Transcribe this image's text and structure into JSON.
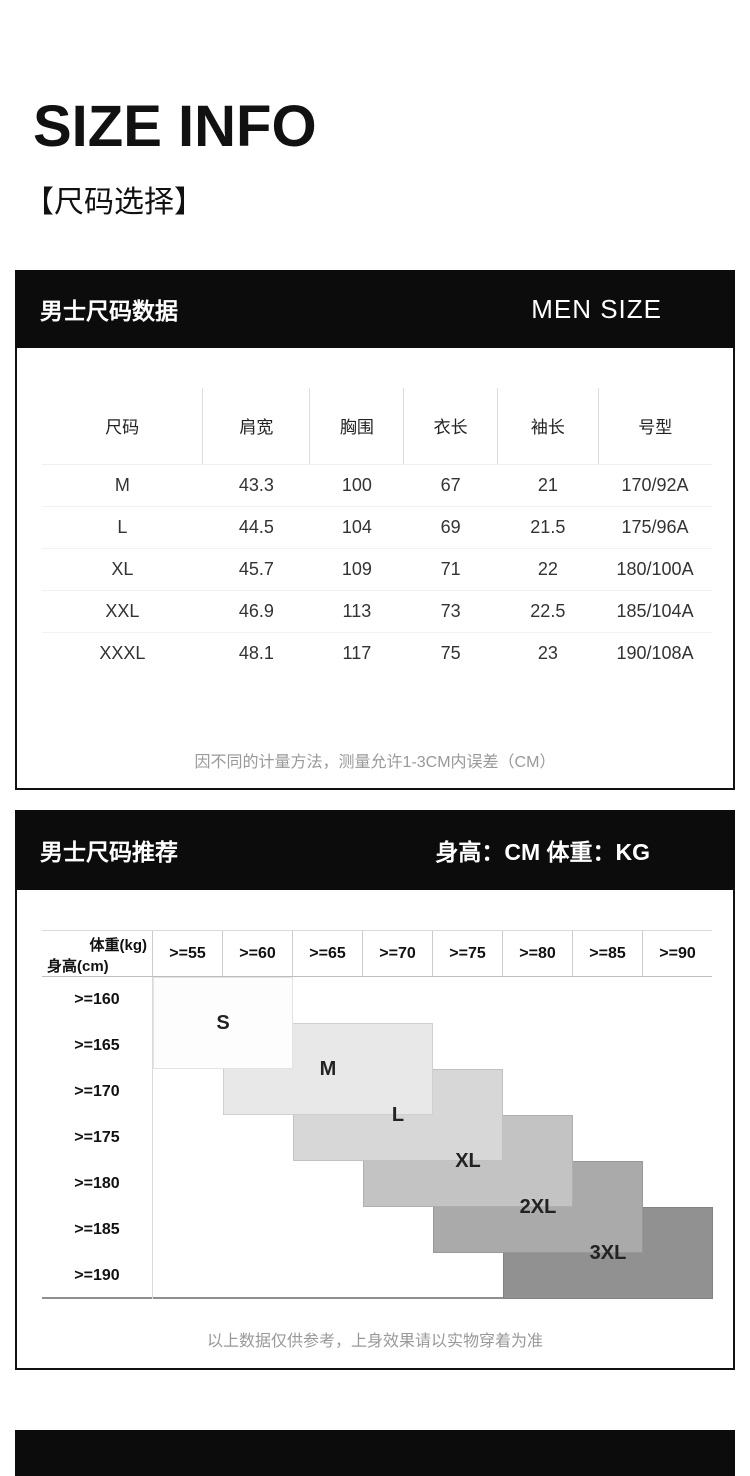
{
  "page": {
    "title": "SIZE INFO",
    "subtitle": "【尺码选择】"
  },
  "colors": {
    "header_bar_bg": "#0c0c0c",
    "note_text": "#999999",
    "grid_bottom_line": "#8f8f8f"
  },
  "men_size_table": {
    "header_left": "男士尺码数据",
    "header_right": "MEN SIZE",
    "columns": [
      "尺码",
      "肩宽",
      "胸围",
      "衣长",
      "袖长",
      "号型"
    ],
    "rows": [
      [
        "M",
        "43.3",
        "100",
        "67",
        "21",
        "170/92A"
      ],
      [
        "L",
        "44.5",
        "104",
        "69",
        "21.5",
        "175/96A"
      ],
      [
        "XL",
        "45.7",
        "109",
        "71",
        "22",
        "180/100A"
      ],
      [
        "XXL",
        "46.9",
        "113",
        "73",
        "22.5",
        "185/104A"
      ],
      [
        "XXXL",
        "48.1",
        "117",
        "75",
        "23",
        "190/108A"
      ]
    ],
    "footnote": "因不同的计量方法，测量允许1-3CM内误差（CM）"
  },
  "size_recommendation": {
    "header_left": "男士尺码推荐",
    "header_right": "身高：CM 体重：KG",
    "corner_top": "体重(kg)",
    "corner_bottom": "身高(cm)",
    "weight_columns": [
      ">=55",
      ">=60",
      ">=65",
      ">=70",
      ">=75",
      ">=80",
      ">=85",
      ">=90"
    ],
    "height_rows": [
      ">=160",
      ">=165",
      ">=170",
      ">=175",
      ">=180",
      ">=185",
      ">=190"
    ],
    "blocks": [
      {
        "label": "S",
        "col_start": 1,
        "col_span": 2,
        "row_start": 1,
        "row_span": 2,
        "color": "#fdfdfd"
      },
      {
        "label": "M",
        "col_start": 2,
        "col_span": 3,
        "row_start": 2,
        "row_span": 2,
        "color": "#e8e8e8"
      },
      {
        "label": "L",
        "col_start": 3,
        "col_span": 3,
        "row_start": 3,
        "row_span": 2,
        "color": "#d7d7d7"
      },
      {
        "label": "XL",
        "col_start": 4,
        "col_span": 3,
        "row_start": 4,
        "row_span": 2,
        "color": "#c3c3c3"
      },
      {
        "label": "2XL",
        "col_start": 5,
        "col_span": 3,
        "row_start": 5,
        "row_span": 2,
        "color": "#aaaaaa"
      },
      {
        "label": "3XL",
        "col_start": 6,
        "col_span": 3,
        "row_start": 6,
        "row_span": 2,
        "color": "#919191"
      }
    ],
    "footnote": "以上数据仅供参考，上身效果请以实物穿着为准"
  }
}
